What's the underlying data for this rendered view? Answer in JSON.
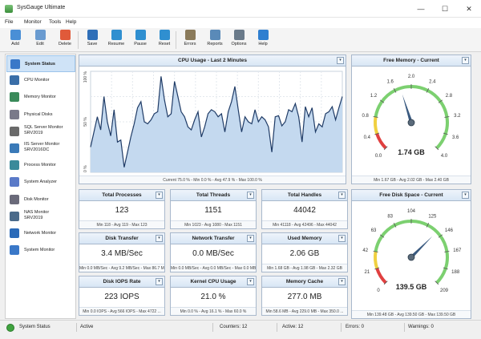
{
  "window": {
    "title": "SysGauge Ultimate",
    "min_glyph": "—",
    "max_glyph": "☐",
    "close_glyph": "✕"
  },
  "menu": [
    "File",
    "Monitor",
    "Tools",
    "Help"
  ],
  "toolbar": [
    {
      "label": "Add",
      "icon": "add-icon",
      "color": "#4a8fd6"
    },
    {
      "label": "Edit",
      "icon": "edit-icon",
      "color": "#6a9bd0"
    },
    {
      "label": "Delete",
      "icon": "delete-icon",
      "color": "#e05a3a"
    },
    {
      "label": "Save",
      "icon": "save-icon",
      "color": "#2f6fb8"
    },
    {
      "label": "Resume",
      "icon": "resume-icon",
      "color": "#2f8fd0"
    },
    {
      "label": "Pause",
      "icon": "pause-icon",
      "color": "#2f8fd0"
    },
    {
      "label": "Reset",
      "icon": "reset-icon",
      "color": "#2f8fd0"
    },
    {
      "label": "Errors",
      "icon": "errors-icon",
      "color": "#8a7a5a"
    },
    {
      "label": "Reports",
      "icon": "reports-icon",
      "color": "#5a8ab8"
    },
    {
      "label": "Options",
      "icon": "options-icon",
      "color": "#6a7a8a"
    },
    {
      "label": "Help",
      "icon": "help-icon",
      "color": "#2f7fd0"
    }
  ],
  "sidebar": [
    {
      "label": "System Status",
      "icon": "monitor-icon",
      "color": "#3a78c8",
      "selected": true
    },
    {
      "label": "CPU Monitor",
      "icon": "cpu-icon",
      "color": "#3a6ea8"
    },
    {
      "label": "Memory Monitor",
      "icon": "memory-icon",
      "color": "#3a8a5a"
    },
    {
      "label": "Physical Disks",
      "icon": "disk-icon",
      "color": "#7a7a8a"
    },
    {
      "label": "SQL Server Monitor\nSRV2019",
      "icon": "sql-icon",
      "color": "#6a6a6a"
    },
    {
      "label": "IIS Server Monitor\nSRV2016DC",
      "icon": "iis-icon",
      "color": "#3a7ab8"
    },
    {
      "label": "Process Monitor",
      "icon": "process-icon",
      "color": "#3a8a9a"
    },
    {
      "label": "System Analyzer",
      "icon": "analyzer-icon",
      "color": "#5a7ac8"
    },
    {
      "label": "Disk Monitor",
      "icon": "disk-monitor-icon",
      "color": "#6a6a7a"
    },
    {
      "label": "NAS Monitor\nSRV2019",
      "icon": "nas-icon",
      "color": "#4a6a8a"
    },
    {
      "label": "Network Monitor",
      "icon": "network-icon",
      "color": "#2a6ab8"
    },
    {
      "label": "System Monitor",
      "icon": "system-monitor-icon",
      "color": "#3a78c8"
    }
  ],
  "cpu_panel": {
    "title": "CPU Usage - Last 2 Minutes",
    "footer": "Current 75.0 % - Min 0.0 % - Avg 47.9 % - Max 100.0 %",
    "chart_data": {
      "type": "area",
      "title": "CPU Usage - Last 2 Minutes",
      "ylim": [
        0,
        100
      ],
      "y_ticks": [
        "100 %",
        "50 %",
        "0 %"
      ],
      "grid": true,
      "values": [
        25,
        40,
        55,
        42,
        75,
        50,
        36,
        62,
        30,
        32,
        5,
        20,
        35,
        48,
        64,
        70,
        50,
        48,
        52,
        58,
        60,
        95,
        72,
        55,
        58,
        90,
        75,
        60,
        55,
        45,
        42,
        52,
        60,
        35,
        45,
        58,
        62,
        60,
        55,
        58,
        40,
        60,
        70,
        85,
        62,
        40,
        55,
        50,
        48,
        62,
        50,
        55,
        52,
        45,
        20,
        55,
        56,
        46,
        50,
        62,
        60,
        68,
        55,
        30,
        65,
        55,
        64,
        40,
        48,
        45,
        58,
        60,
        65,
        52,
        64,
        75
      ],
      "colors": {
        "line": "#1f3b66",
        "fill": "#c4d9ef"
      }
    }
  },
  "mem_gauge": {
    "title": "Free Memory - Current",
    "value_text": "1.74 GB",
    "footer": "Min 1.67 GB - Avg 2.02 GB - Max 2.40 GB",
    "ticks": [
      "0.0",
      "0.4",
      "0.8",
      "1.2",
      "1.6",
      "2.0",
      "2.4",
      "2.8",
      "3.2",
      "3.6",
      "4.0"
    ],
    "min": 0,
    "max": 4.0,
    "value": 1.74
  },
  "disk_gauge": {
    "title": "Free Disk Space - Current",
    "value_text": "139.5 GB",
    "footer": "Min 139.48 GB - Avg 139.50 GB - Max 139.50 GB",
    "ticks": [
      "0",
      "21",
      "42",
      "63",
      "83",
      "104",
      "125",
      "146",
      "167",
      "188",
      "209"
    ],
    "min": 0,
    "max": 209,
    "value": 139.5
  },
  "stats": [
    {
      "title": "Total Processes",
      "value": "123",
      "footer": "Min 118 - Avg 119 - Max 123"
    },
    {
      "title": "Total Threads",
      "value": "1151",
      "footer": "Min 1023 - Avg 1080 - Max 1151"
    },
    {
      "title": "Total Handles",
      "value": "44042",
      "footer": "Min 41118 - Avg 42496 - Max 44042"
    },
    {
      "title": "Disk Transfer",
      "value": "3.4 MB/Sec",
      "footer": "Min 0.0 MB/Sec - Avg 9.2 MB/Sec - Max 86.7 MB/Sec"
    },
    {
      "title": "Network Transfer",
      "value": "0.0 MB/Sec",
      "footer": "Min 0.0 MB/Sec - Avg 0.0 MB/Sec - Max 0.0 MB/Sec"
    },
    {
      "title": "Used Memory",
      "value": "2.06 GB",
      "footer": "Min 1.68 GB - Avg 1.98 GB - Max 2.32 GB"
    },
    {
      "title": "Disk IOPS Rate",
      "value": "223 IOPS",
      "footer": "Min 0.0 IOPS - Avg 566 IOPS - Max 4722 ..."
    },
    {
      "title": "Kernel CPU Usage",
      "value": "21.0 %",
      "footer": "Min 0.0 % - Avg 16.1 % - Max 60.0 %"
    },
    {
      "title": "Memory Cache",
      "value": "277.0 MB",
      "footer": "Min 58.6 MB - Avg 229.0 MB - Max 350.0 ..."
    }
  ],
  "statusbar": {
    "status": "System Status",
    "state": "Active",
    "counters": "Counters: 12",
    "active": "Active: 12",
    "errors": "Errors: 0",
    "warnings": "Warnings: 0"
  }
}
